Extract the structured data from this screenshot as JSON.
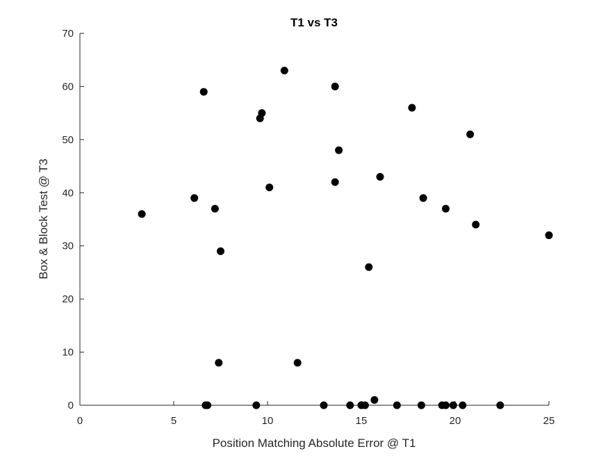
{
  "chart_data": {
    "type": "scatter",
    "title": "T1 vs T3",
    "xlabel": "Position Matching Absolute Error @ T1",
    "ylabel": "Box & Block Test @ T3",
    "xlim": [
      0,
      25
    ],
    "ylim": [
      0,
      70
    ],
    "xticks": [
      "0",
      "5",
      "10",
      "15",
      "20",
      "25"
    ],
    "yticks": [
      "0",
      "10",
      "20",
      "30",
      "40",
      "50",
      "60",
      "70"
    ],
    "grid": false,
    "marker_color": "#000000",
    "points": [
      {
        "x": 3.3,
        "y": 36
      },
      {
        "x": 6.1,
        "y": 39
      },
      {
        "x": 6.6,
        "y": 59
      },
      {
        "x": 6.7,
        "y": 0
      },
      {
        "x": 6.8,
        "y": 0
      },
      {
        "x": 7.2,
        "y": 37
      },
      {
        "x": 7.4,
        "y": 8
      },
      {
        "x": 7.5,
        "y": 29
      },
      {
        "x": 9.4,
        "y": 0
      },
      {
        "x": 9.6,
        "y": 54
      },
      {
        "x": 9.7,
        "y": 55
      },
      {
        "x": 10.1,
        "y": 41
      },
      {
        "x": 10.9,
        "y": 63
      },
      {
        "x": 11.6,
        "y": 8
      },
      {
        "x": 13.0,
        "y": 0
      },
      {
        "x": 13.6,
        "y": 42
      },
      {
        "x": 13.6,
        "y": 60
      },
      {
        "x": 13.8,
        "y": 48
      },
      {
        "x": 14.4,
        "y": 0
      },
      {
        "x": 15.0,
        "y": 0
      },
      {
        "x": 15.2,
        "y": 0
      },
      {
        "x": 15.4,
        "y": 26
      },
      {
        "x": 15.7,
        "y": 1
      },
      {
        "x": 16.0,
        "y": 43
      },
      {
        "x": 16.9,
        "y": 0
      },
      {
        "x": 17.7,
        "y": 56
      },
      {
        "x": 18.2,
        "y": 0
      },
      {
        "x": 18.3,
        "y": 39
      },
      {
        "x": 19.3,
        "y": 0
      },
      {
        "x": 19.5,
        "y": 0
      },
      {
        "x": 19.5,
        "y": 37
      },
      {
        "x": 19.9,
        "y": 0
      },
      {
        "x": 20.4,
        "y": 0
      },
      {
        "x": 20.8,
        "y": 51
      },
      {
        "x": 21.1,
        "y": 34
      },
      {
        "x": 22.4,
        "y": 0
      },
      {
        "x": 25.0,
        "y": 32
      }
    ]
  }
}
